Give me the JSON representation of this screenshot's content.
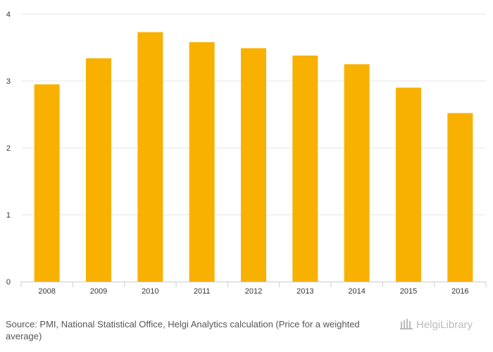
{
  "chart_data": {
    "type": "bar",
    "title": "",
    "xlabel": "",
    "ylabel": "",
    "categories": [
      "2008",
      "2009",
      "2010",
      "2011",
      "2012",
      "2013",
      "2014",
      "2015",
      "2016"
    ],
    "values": [
      2.95,
      3.34,
      3.73,
      3.58,
      3.49,
      3.38,
      3.25,
      2.9,
      2.52
    ],
    "ylim": [
      0,
      4
    ],
    "yticks": [
      "0",
      "1",
      "2",
      "3",
      "4"
    ],
    "grid": true,
    "legend": "none",
    "bar_color": "#F8B100"
  },
  "source_note": "Source: PMI, National Statistical Office, Helgi Analytics calculation (Price for a weighted average)",
  "logo": {
    "text": "HelgiLibrary",
    "icon": "library-building-icon"
  },
  "colors": {
    "grid": "#e6e6e6",
    "axis": "#cccccc",
    "text": "#333333",
    "logo": "#bbbbbb"
  }
}
